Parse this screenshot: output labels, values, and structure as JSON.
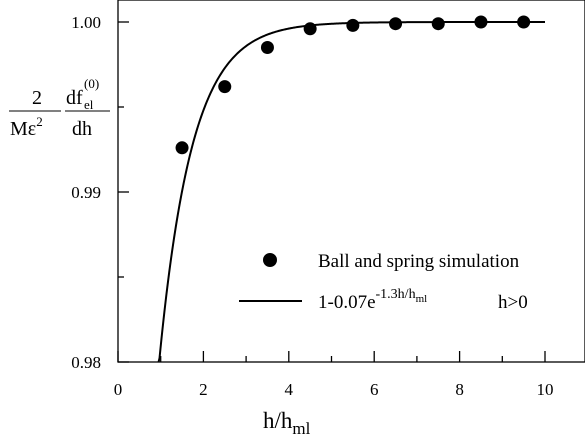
{
  "chart_data": {
    "type": "scatter",
    "xlim": [
      0,
      11
    ],
    "ylim": [
      0.98,
      1.0
    ],
    "x_ticks": [
      0,
      2,
      4,
      6,
      8,
      10
    ],
    "x_tick_labels": [
      "0",
      "2",
      "4",
      "6",
      "8",
      "10"
    ],
    "x_minor_ticks": [
      1,
      3,
      5,
      7,
      9
    ],
    "y_ticks": [
      0.98,
      0.99,
      1.0
    ],
    "y_tick_labels": [
      "0.98",
      "0.99",
      "1.00"
    ],
    "y_minor_ticks": [
      0.985,
      0.995
    ],
    "xlabel": {
      "base": "h/h",
      "sub": "ml"
    },
    "ylabel": {
      "num_left": "2",
      "den_left": "Mε",
      "den_left_sup": "2",
      "num_right": "df",
      "num_right_sub": "el",
      "num_right_sup": "(0)",
      "den_right": "dh"
    },
    "grid": false,
    "legend_position": "lower-right",
    "series": [
      {
        "name": "Ball and spring simulation",
        "kind": "scatter",
        "marker": "filled-circle",
        "x": [
          1.5,
          2.5,
          3.5,
          4.5,
          5.5,
          6.5,
          7.5,
          8.5,
          9.5
        ],
        "y": [
          0.9926,
          0.9962,
          0.9985,
          0.9996,
          0.9998,
          0.9999,
          0.9999,
          1.0,
          1.0
        ]
      },
      {
        "name": "1-0.07e^(-1.3h/h_ml)  h>0",
        "kind": "line",
        "label_parts": {
          "base": "1-0.07e",
          "sup": "-1.3h/h",
          "sup_sub": "ml",
          "cond": "h>0"
        },
        "formula": {
          "a": 0.07,
          "b": 1.3
        },
        "x_range": [
          0.95,
          10
        ]
      }
    ]
  }
}
